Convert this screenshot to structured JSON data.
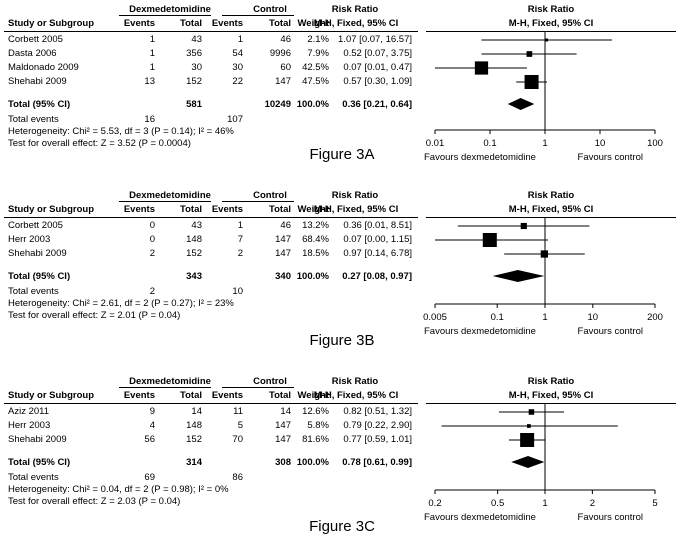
{
  "labels": {
    "study_col": "Study or Subgroup",
    "treatment_group": "Dexmedetomidine",
    "control_group": "Control",
    "events": "Events",
    "total": "Total",
    "weight": "Weight",
    "risk_ratio": "Risk Ratio",
    "method": "M-H, Fixed, 95% CI",
    "total_row": "Total (95% CI)",
    "total_events": "Total events",
    "favours_left": "Favours dexmedetomidine",
    "favours_right": "Favours control"
  },
  "chart_data": [
    {
      "type": "forest",
      "title": "Figure 3A",
      "studies": [
        {
          "name": "Corbett 2005",
          "events_t": "1",
          "total_t": "43",
          "events_c": "1",
          "total_c": "46",
          "weight": "2.1%",
          "ci_text": "1.07 [0.07, 16.57]",
          "rr": 1.07,
          "lo": 0.07,
          "hi": 16.57,
          "w": 2.1
        },
        {
          "name": "Dasta 2006",
          "events_t": "1",
          "total_t": "356",
          "events_c": "54",
          "total_c": "9996",
          "weight": "7.9%",
          "ci_text": "0.52 [0.07, 3.75]",
          "rr": 0.52,
          "lo": 0.07,
          "hi": 3.75,
          "w": 7.9
        },
        {
          "name": "Maldonado 2009",
          "events_t": "1",
          "total_t": "30",
          "events_c": "30",
          "total_c": "60",
          "weight": "42.5%",
          "ci_text": "0.07 [0.01, 0.47]",
          "rr": 0.07,
          "lo": 0.01,
          "hi": 0.47,
          "w": 42.5
        },
        {
          "name": "Shehabi 2009",
          "events_t": "13",
          "total_t": "152",
          "events_c": "22",
          "total_c": "147",
          "weight": "47.5%",
          "ci_text": "0.57 [0.30, 1.09]",
          "rr": 0.57,
          "lo": 0.3,
          "hi": 1.09,
          "w": 47.5
        }
      ],
      "total": {
        "total_t": "581",
        "total_c": "10249",
        "weight": "100.0%",
        "ci_text": "0.36 [0.21, 0.64]",
        "rr": 0.36,
        "lo": 0.21,
        "hi": 0.64
      },
      "total_events_t": "16",
      "total_events_c": "107",
      "heterogeneity": "Heterogeneity: Chi² = 5.53, df = 3 (P = 0.14); I² = 46%",
      "overall_effect": "Test for overall effect: Z = 3.52 (P = 0.0004)",
      "xscale": "log",
      "xlim": [
        0.01,
        100
      ],
      "ticks": [
        {
          "v": 0.01,
          "label": "0.01"
        },
        {
          "v": 0.1,
          "label": "0.1"
        },
        {
          "v": 1,
          "label": "1"
        },
        {
          "v": 10,
          "label": "10"
        },
        {
          "v": 100,
          "label": "100"
        }
      ]
    },
    {
      "type": "forest",
      "title": "Figure 3B",
      "studies": [
        {
          "name": "Corbett 2005",
          "events_t": "0",
          "total_t": "43",
          "events_c": "1",
          "total_c": "46",
          "weight": "13.2%",
          "ci_text": "0.36 [0.01, 8.51]",
          "rr": 0.36,
          "lo": 0.015,
          "hi": 8.51,
          "w": 13.2
        },
        {
          "name": "Herr 2003",
          "events_t": "0",
          "total_t": "148",
          "events_c": "7",
          "total_c": "147",
          "weight": "68.4%",
          "ci_text": "0.07 [0.00, 1.15]",
          "rr": 0.07,
          "lo": 0.004,
          "hi": 1.15,
          "w": 68.4
        },
        {
          "name": "Shehabi 2009",
          "events_t": "2",
          "total_t": "152",
          "events_c": "2",
          "total_c": "147",
          "weight": "18.5%",
          "ci_text": "0.97 [0.14, 6.78]",
          "rr": 0.97,
          "lo": 0.14,
          "hi": 6.78,
          "w": 18.5
        }
      ],
      "total": {
        "total_t": "343",
        "total_c": "340",
        "weight": "100.0%",
        "ci_text": "0.27 [0.08, 0.97]",
        "rr": 0.27,
        "lo": 0.08,
        "hi": 0.97
      },
      "total_events_t": "2",
      "total_events_c": "10",
      "heterogeneity": "Heterogeneity: Chi² = 2.61, df = 2 (P = 0.27); I² = 23%",
      "overall_effect": "Test for overall effect: Z = 2.01 (P = 0.04)",
      "xscale": "log",
      "xlim": [
        0.005,
        200
      ],
      "ticks": [
        {
          "v": 0.005,
          "label": "0.005"
        },
        {
          "v": 0.1,
          "label": "0.1"
        },
        {
          "v": 1,
          "label": "1"
        },
        {
          "v": 10,
          "label": "10"
        },
        {
          "v": 200,
          "label": "200"
        }
      ]
    },
    {
      "type": "forest",
      "title": "Figure 3C",
      "studies": [
        {
          "name": "Aziz 2011",
          "events_t": "9",
          "total_t": "14",
          "events_c": "11",
          "total_c": "14",
          "weight": "12.6%",
          "ci_text": "0.82 [0.51, 1.32]",
          "rr": 0.82,
          "lo": 0.51,
          "hi": 1.32,
          "w": 12.6
        },
        {
          "name": "Herr 2003",
          "events_t": "4",
          "total_t": "148",
          "events_c": "5",
          "total_c": "147",
          "weight": "5.8%",
          "ci_text": "0.79 [0.22, 2.90]",
          "rr": 0.79,
          "lo": 0.22,
          "hi": 2.9,
          "w": 5.8
        },
        {
          "name": "Shehabi 2009",
          "events_t": "56",
          "total_t": "152",
          "events_c": "70",
          "total_c": "147",
          "weight": "81.6%",
          "ci_text": "0.77 [0.59, 1.01]",
          "rr": 0.77,
          "lo": 0.59,
          "hi": 1.01,
          "w": 81.6
        }
      ],
      "total": {
        "total_t": "314",
        "total_c": "308",
        "weight": "100.0%",
        "ci_text": "0.78 [0.61, 0.99]",
        "rr": 0.78,
        "lo": 0.61,
        "hi": 0.99
      },
      "total_events_t": "69",
      "total_events_c": "86",
      "heterogeneity": "Heterogeneity: Chi² = 0.04, df = 2 (P = 0.98); I² = 0%",
      "overall_effect": "Test for overall effect: Z = 2.03 (P = 0.04)",
      "xscale": "log",
      "xlim": [
        0.2,
        5
      ],
      "ticks": [
        {
          "v": 0.2,
          "label": "0.2"
        },
        {
          "v": 0.5,
          "label": "0.5"
        },
        {
          "v": 1,
          "label": "1"
        },
        {
          "v": 2,
          "label": "2"
        },
        {
          "v": 5,
          "label": "5"
        }
      ]
    }
  ]
}
